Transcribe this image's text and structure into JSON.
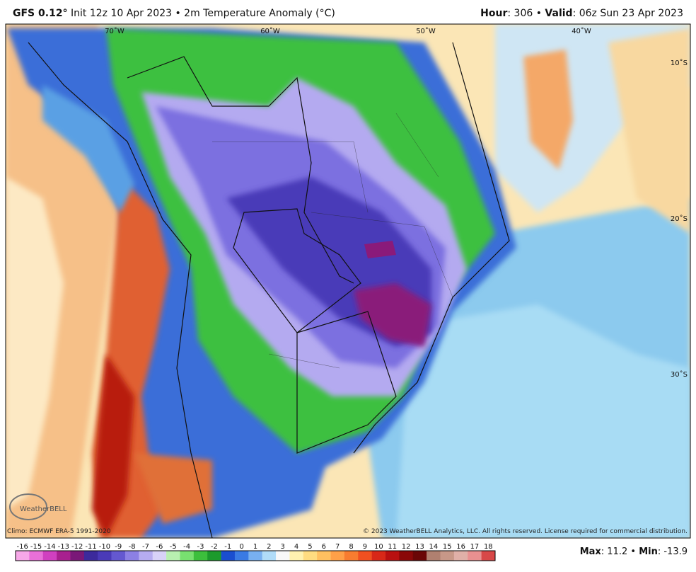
{
  "header": {
    "model": "GFS 0.12°",
    "init": "Init 12z 10 Apr 2023 • 2m Temperature Anomaly (°C)",
    "hour_label": "Hour",
    "hour": ": 306 • ",
    "valid_label": "Valid",
    "valid": ": 06z Sun 23 Apr 2023"
  },
  "map": {
    "lon_labels": [
      "70˚W",
      "60˚W",
      "50˚W",
      "40˚W"
    ],
    "lat_labels": [
      "10˚S",
      "20˚S",
      "30˚S"
    ],
    "logo": "WeatherBELL"
  },
  "footer": {
    "climo": "Climo: ECMWF ERA-5 1991-2020",
    "copyright": "© 2023 WeatherBELL Analytics, LLC. All rights reserved. License required for commercial distribution.",
    "max_label": "Max",
    "max": ": 11.2 • ",
    "min_label": "Min",
    "min": ": -13.9"
  },
  "colorbar": {
    "ticks": [
      -16,
      -15,
      -14,
      -13,
      -12,
      -11,
      -10,
      -9,
      -8,
      -7,
      -6,
      -5,
      -4,
      -3,
      -2,
      -1,
      0,
      1,
      2,
      3,
      4,
      5,
      6,
      7,
      8,
      9,
      10,
      11,
      12,
      13,
      14,
      15,
      16,
      17,
      18
    ],
    "colors": [
      "#f7a8e8",
      "#e870d8",
      "#d040c0",
      "#a8208f",
      "#7a1878",
      "#3c2a9c",
      "#4a3ab8",
      "#6458d0",
      "#8c80e4",
      "#b6acf0",
      "#d8d2f8",
      "#b8f0b0",
      "#78e070",
      "#3cbf3c",
      "#1c9a2c",
      "#1a4ed0",
      "#3a7ae4",
      "#78b0f0",
      "#b0dcf8",
      "#f8f8f8",
      "#fff2b0",
      "#ffdc80",
      "#ffc060",
      "#ffa048",
      "#f87c30",
      "#f05020",
      "#d82818",
      "#b81010",
      "#8a0808",
      "#6a0606",
      "#b08070",
      "#c89888",
      "#e0b0a8",
      "#e89090",
      "#d84848"
    ]
  }
}
